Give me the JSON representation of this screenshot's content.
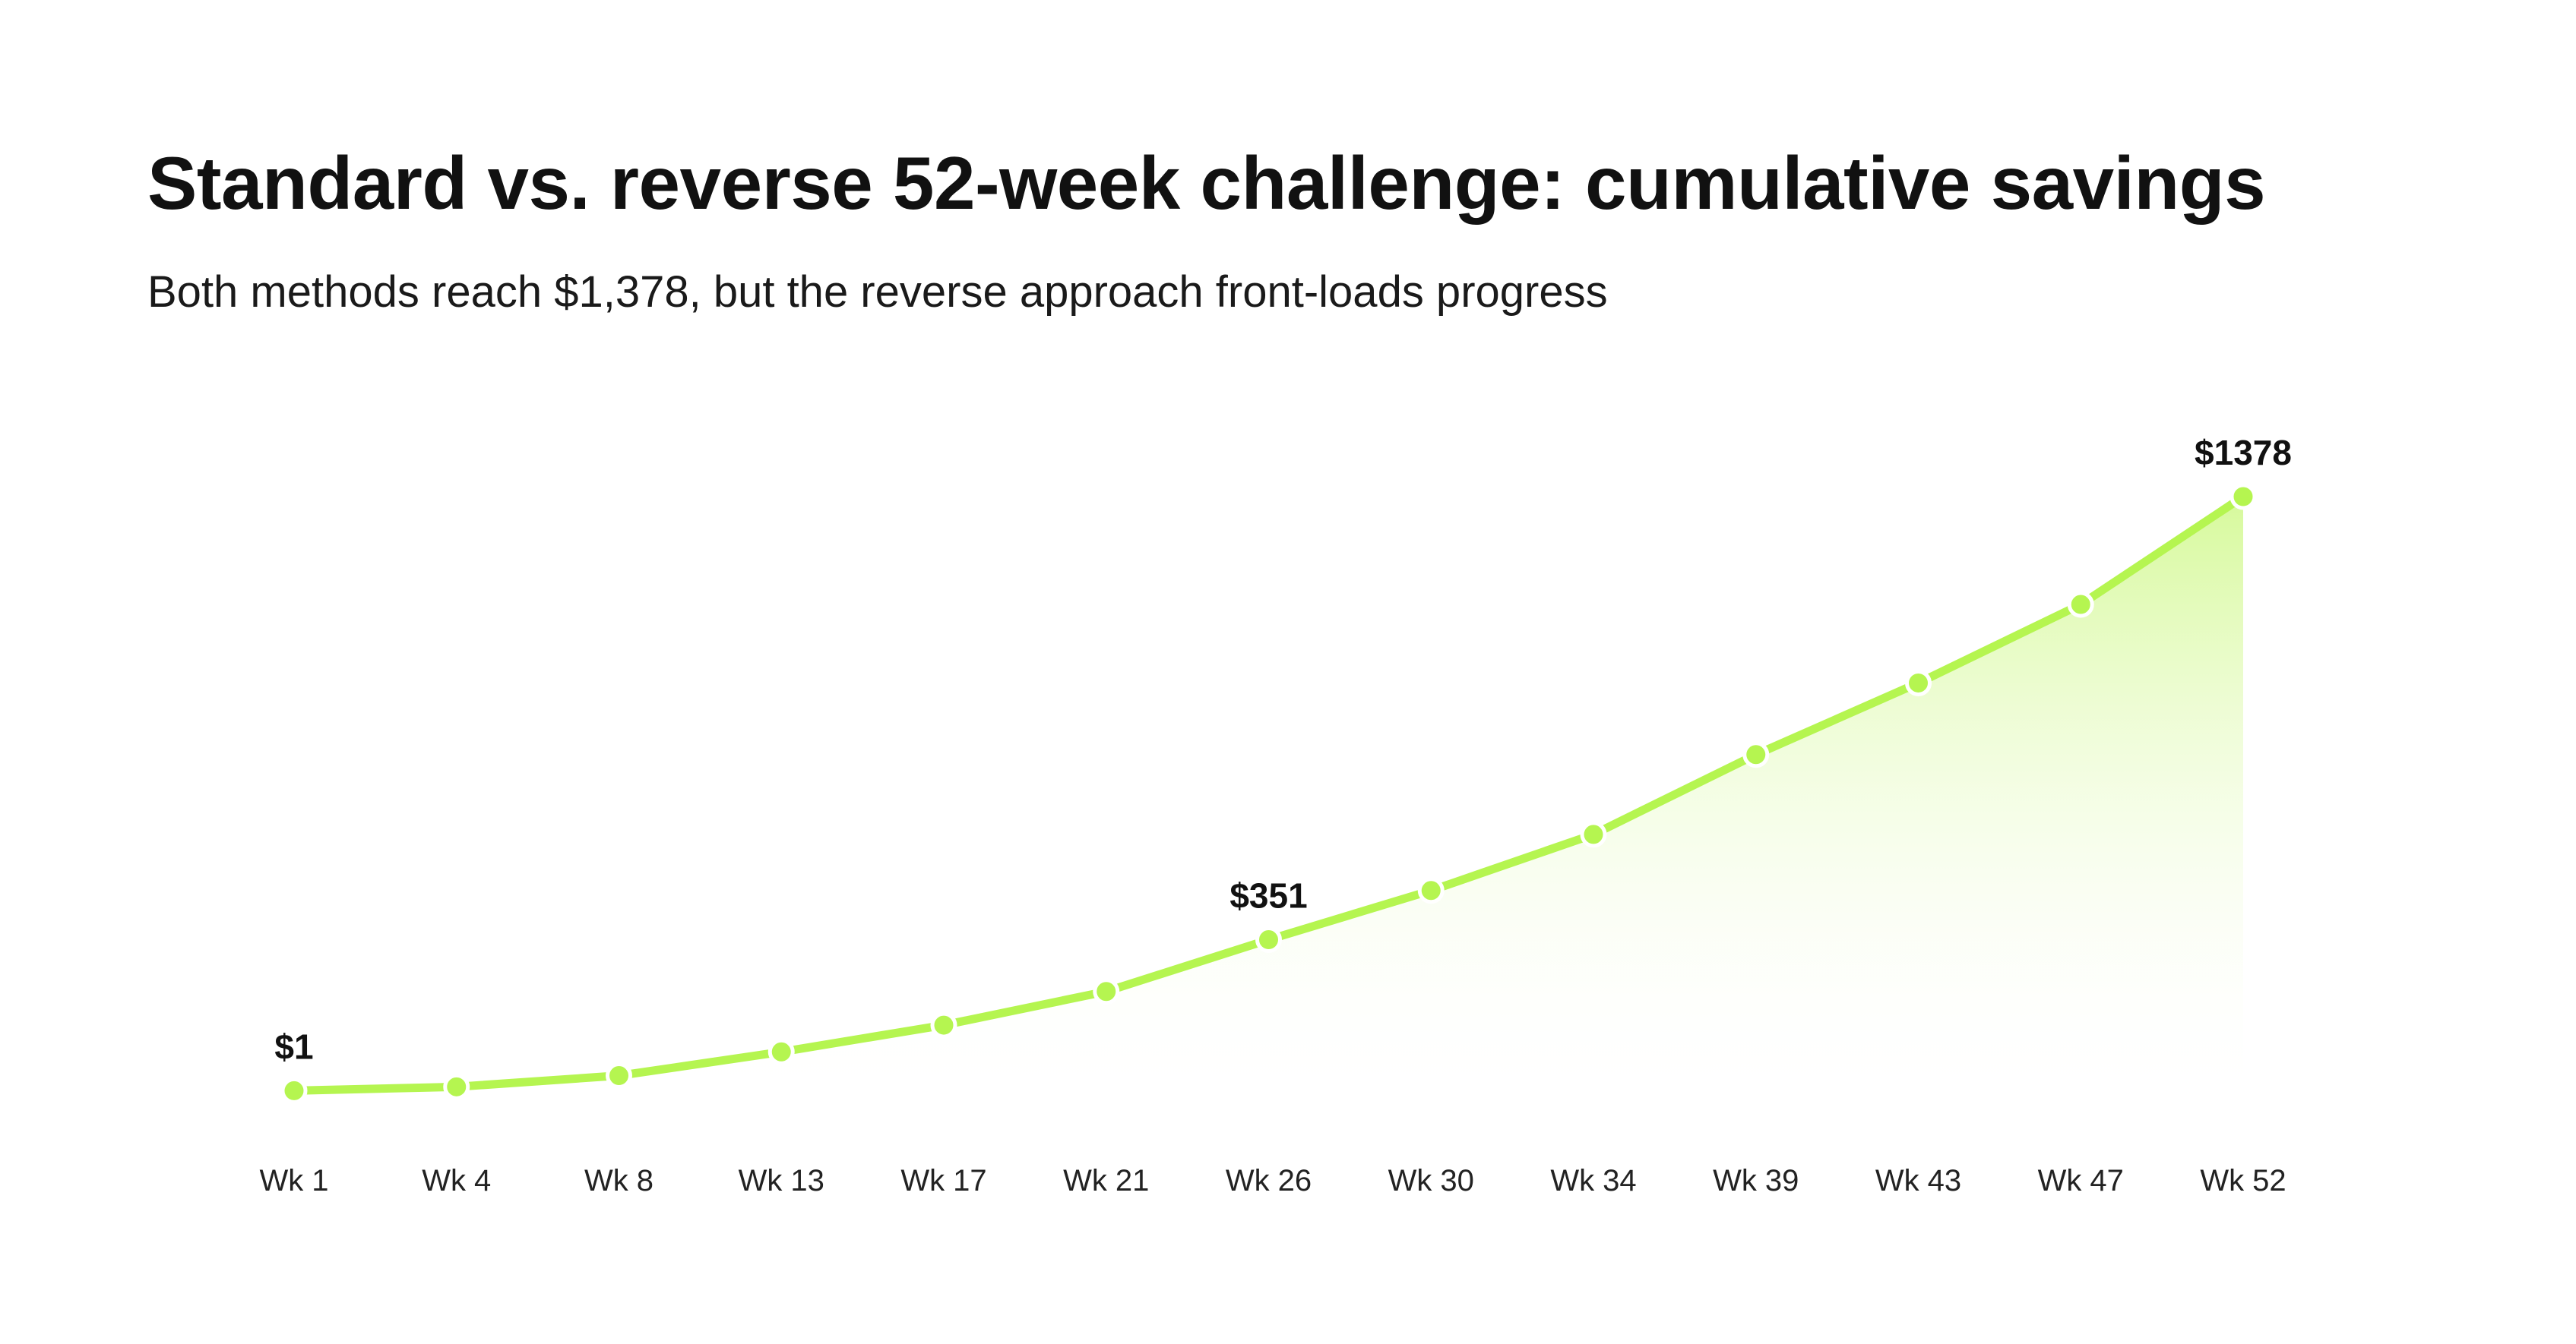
{
  "header": {
    "title": "Standard vs. reverse 52-week challenge: cumulative savings",
    "subtitle": "Both methods reach $1,378, but the reverse approach front-loads progress"
  },
  "chart_data": {
    "type": "area",
    "title": "Standard vs. reverse 52-week challenge: cumulative savings",
    "subtitle": "Both methods reach $1,378, but the reverse approach front-loads progress",
    "categories": [
      "Wk 1",
      "Wk 4",
      "Wk 8",
      "Wk 13",
      "Wk 17",
      "Wk 21",
      "Wk 26",
      "Wk 30",
      "Wk 34",
      "Wk 39",
      "Wk 43",
      "Wk 47",
      "Wk 52"
    ],
    "series": [
      {
        "values": [
          1,
          10,
          36,
          91,
          153,
          231,
          351,
          465,
          595,
          780,
          946,
          1128,
          1378
        ]
      }
    ],
    "data_labels": [
      {
        "index": 0,
        "text": "$1"
      },
      {
        "index": 6,
        "text": "$351"
      },
      {
        "index": 12,
        "text": "$1378"
      }
    ],
    "ylim": [
      0,
      1378
    ],
    "grid": false,
    "legend": "none",
    "colors": {
      "line": "#b5f550",
      "fill_top": "#c9f77a",
      "fill_bottom": "#ffffff",
      "marker_stroke": "#ffffff"
    }
  }
}
